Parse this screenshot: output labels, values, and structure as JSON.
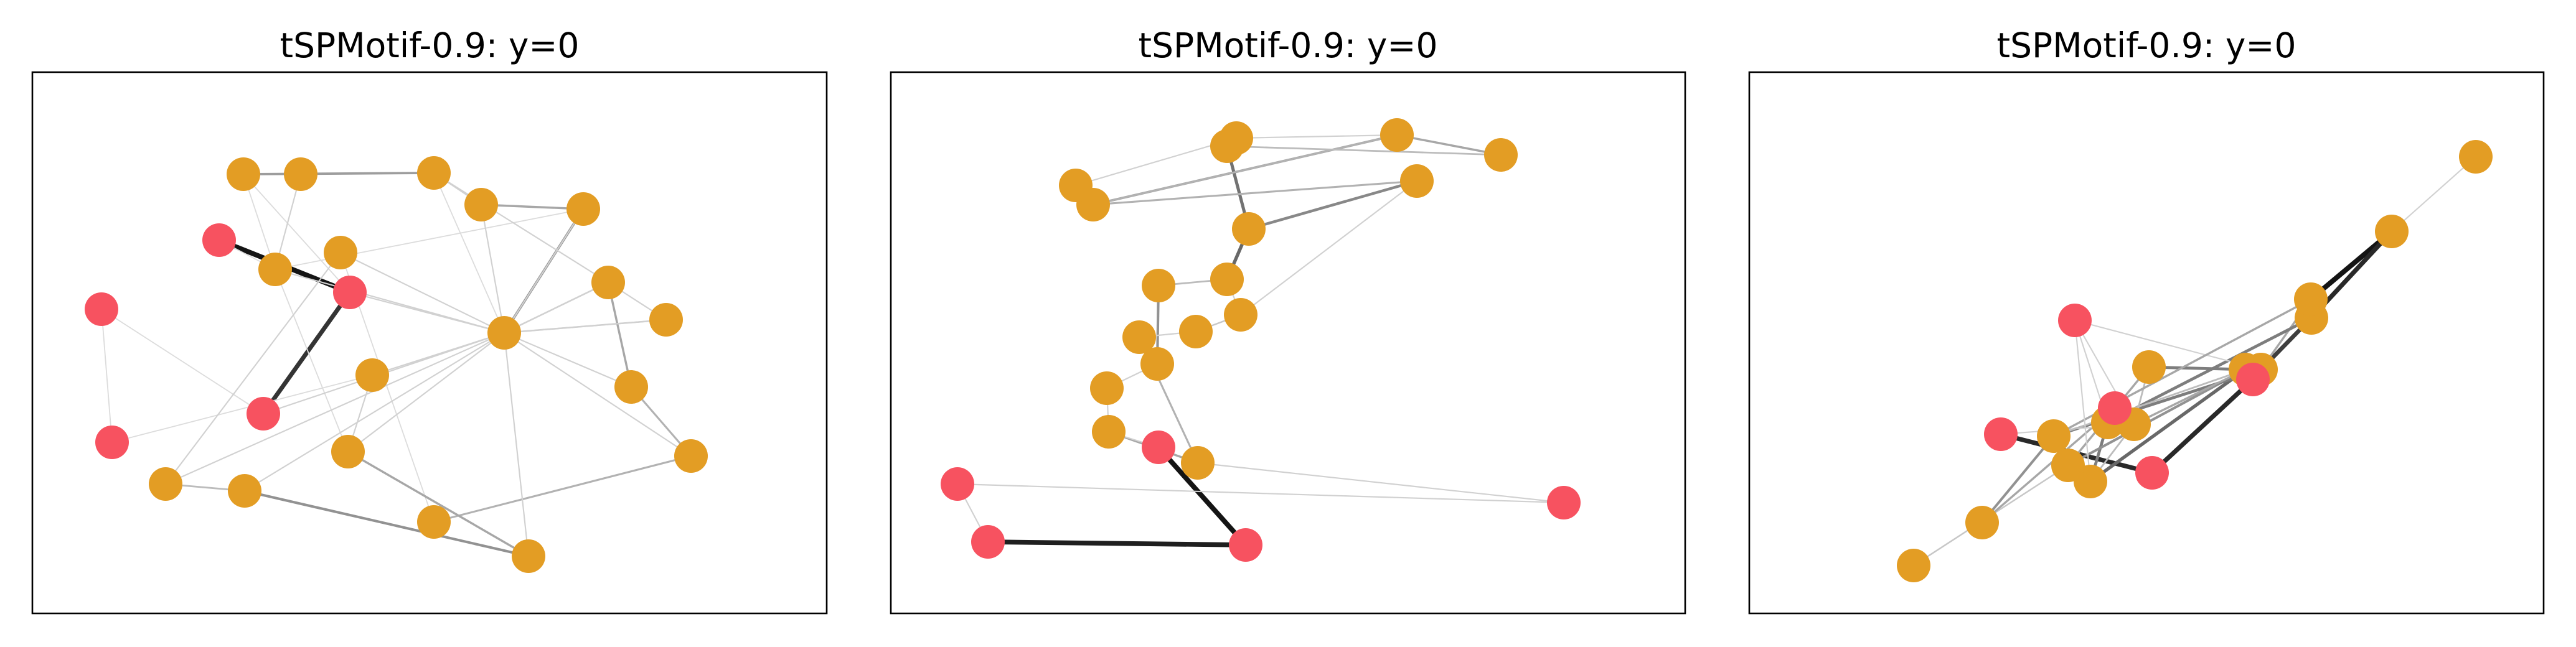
{
  "node_colors": {
    "orange": "#E39D24",
    "red": "#F75260"
  },
  "panels": [
    {
      "title": "tSPMotif-0.9: y=0",
      "nodes": [
        {
          "c": "o"
        },
        {
          "c": "o"
        },
        {
          "c": "o"
        },
        {
          "c": "o"
        },
        {
          "c": "o"
        },
        {
          "c": "o"
        },
        {
          "c": "o"
        },
        {
          "c": "o"
        },
        {
          "c": "o"
        },
        {
          "c": "o"
        },
        {
          "c": "o"
        },
        {
          "c": "o"
        },
        {
          "c": "o"
        },
        {
          "c": "o"
        },
        {
          "c": "o"
        },
        {
          "c": "o"
        },
        {
          "c": "o"
        },
        {
          "c": "o"
        },
        {
          "c": "r"
        },
        {
          "c": "r"
        },
        {
          "c": "r"
        },
        {
          "c": "r"
        },
        {
          "c": "r"
        }
      ],
      "edges": [
        [
          18,
          19,
          1.0
        ],
        [
          19,
          20,
          0.85
        ],
        [
          18,
          10,
          0.05
        ],
        [
          10,
          3,
          0.05
        ],
        [
          20,
          21,
          0.05
        ],
        [
          21,
          22,
          0.05
        ],
        [
          22,
          11,
          0.05
        ],
        [
          11,
          12,
          0.05
        ],
        [
          12,
          10,
          0.05
        ],
        [
          10,
          9,
          0.05
        ],
        [
          9,
          19,
          0.05
        ],
        [
          9,
          0,
          0.1
        ],
        [
          0,
          1,
          0.05
        ],
        [
          1,
          2,
          0.1
        ],
        [
          2,
          3,
          0.3
        ],
        [
          4,
          3,
          0.4
        ],
        [
          4,
          5,
          0.15
        ],
        [
          4,
          6,
          0.15
        ],
        [
          5,
          7,
          0.3
        ],
        [
          7,
          8,
          0.25
        ],
        [
          8,
          16,
          0.25
        ],
        [
          16,
          15,
          0.05
        ],
        [
          15,
          14,
          0.1
        ],
        [
          14,
          13,
          0.2
        ],
        [
          13,
          17,
          0.4
        ],
        [
          17,
          12,
          0.3
        ],
        [
          11,
          12,
          0.1
        ],
        [
          9,
          1,
          0.35
        ],
        [
          1,
          4,
          0.05
        ],
        [
          2,
          4,
          0.1
        ],
        [
          3,
          4,
          0.1
        ],
        [
          5,
          4,
          0.1
        ],
        [
          6,
          4,
          0.1
        ],
        [
          7,
          4,
          0.1
        ],
        [
          8,
          4,
          0.1
        ],
        [
          10,
          4,
          0.1
        ],
        [
          11,
          4,
          0.1
        ],
        [
          12,
          4,
          0.1
        ],
        [
          13,
          4,
          0.1
        ],
        [
          14,
          4,
          0.1
        ],
        [
          15,
          4,
          0.1
        ],
        [
          17,
          4,
          0.1
        ],
        [
          19,
          4,
          0.1
        ],
        [
          20,
          4,
          0.1
        ],
        [
          5,
          1,
          0.1
        ],
        [
          6,
          5,
          0.1
        ],
        [
          10,
          0,
          0.1
        ]
      ]
    },
    {
      "title": "tSPMotif-0.9: y=0",
      "nodes": [
        {
          "c": "o"
        },
        {
          "c": "o"
        },
        {
          "c": "o"
        },
        {
          "c": "o"
        },
        {
          "c": "o"
        },
        {
          "c": "o"
        },
        {
          "c": "o"
        },
        {
          "c": "o"
        },
        {
          "c": "o"
        },
        {
          "c": "o"
        },
        {
          "c": "o"
        },
        {
          "c": "o"
        },
        {
          "c": "o"
        },
        {
          "c": "o"
        },
        {
          "c": "o"
        },
        {
          "c": "o"
        },
        {
          "c": "o"
        },
        {
          "c": "r"
        },
        {
          "c": "r"
        },
        {
          "c": "r"
        },
        {
          "c": "r"
        },
        {
          "c": "r"
        }
      ],
      "edges": [
        [
          0,
          1,
          1.0
        ],
        [
          0,
          5,
          0.1
        ],
        [
          2,
          4,
          0.35
        ],
        [
          1,
          6,
          0.55
        ],
        [
          6,
          7,
          0.45
        ],
        [
          4,
          2,
          0.25
        ],
        [
          2,
          3,
          0.3
        ],
        [
          3,
          1,
          0.2
        ],
        [
          4,
          7,
          0.25
        ],
        [
          6,
          8,
          0.6
        ],
        [
          8,
          10,
          0.2
        ],
        [
          10,
          11,
          0.4
        ],
        [
          11,
          12,
          0.1
        ],
        [
          12,
          15,
          0.1
        ],
        [
          8,
          9,
          0.1
        ],
        [
          9,
          13,
          0.15
        ],
        [
          13,
          14,
          0.1
        ],
        [
          14,
          16,
          0.25
        ],
        [
          16,
          15,
          0.3
        ],
        [
          7,
          9,
          0.1
        ],
        [
          17,
          19,
          1.0
        ],
        [
          19,
          21,
          0.95
        ],
        [
          16,
          18,
          0.1
        ],
        [
          18,
          20,
          0.1
        ],
        [
          20,
          21,
          0.1
        ],
        [
          0,
          2,
          0.1
        ],
        [
          15,
          17,
          0.1
        ]
      ]
    },
    {
      "title": "tSPMotif-0.9: y=0",
      "nodes": [
        {
          "c": "o"
        },
        {
          "c": "o"
        },
        {
          "c": "o"
        },
        {
          "c": "o"
        },
        {
          "c": "o"
        },
        {
          "c": "o"
        },
        {
          "c": "o"
        },
        {
          "c": "o"
        },
        {
          "c": "o"
        },
        {
          "c": "o"
        },
        {
          "c": "o"
        },
        {
          "c": "o"
        },
        {
          "c": "o"
        },
        {
          "c": "o"
        },
        {
          "c": "r"
        },
        {
          "c": "r"
        },
        {
          "c": "r"
        },
        {
          "c": "r"
        },
        {
          "c": "r"
        }
      ],
      "edges": [
        [
          0,
          1,
          0.1
        ],
        [
          1,
          3,
          1.0
        ],
        [
          1,
          2,
          0.9
        ],
        [
          2,
          4,
          0.8
        ],
        [
          3,
          4,
          0.3
        ],
        [
          4,
          16,
          0.55
        ],
        [
          16,
          17,
          0.9
        ],
        [
          17,
          18,
          0.9
        ],
        [
          2,
          5,
          0.5
        ],
        [
          5,
          8,
          0.5
        ],
        [
          8,
          11,
          0.6
        ],
        [
          11,
          12,
          0.4
        ],
        [
          11,
          10,
          0.5
        ],
        [
          10,
          12,
          0.3
        ],
        [
          12,
          13,
          0.15
        ],
        [
          4,
          6,
          0.5
        ],
        [
          6,
          7,
          0.4
        ],
        [
          7,
          14,
          0.3
        ],
        [
          14,
          9,
          0.3
        ],
        [
          9,
          8,
          0.2
        ],
        [
          9,
          10,
          0.2
        ],
        [
          15,
          5,
          0.1
        ],
        [
          15,
          4,
          0.1
        ],
        [
          15,
          9,
          0.1
        ],
        [
          9,
          18,
          0.1
        ],
        [
          6,
          11,
          0.2
        ],
        [
          8,
          12,
          0.1
        ],
        [
          3,
          6,
          0.3
        ],
        [
          8,
          15,
          0.1
        ],
        [
          9,
          11,
          0.3
        ]
      ]
    }
  ]
}
